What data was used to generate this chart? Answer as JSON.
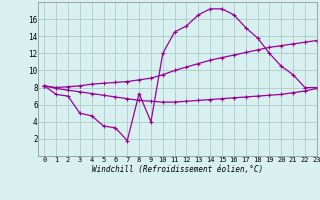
{
  "line1_x": [
    0,
    1,
    2,
    3,
    4,
    5,
    6,
    7,
    8,
    9,
    10,
    11,
    12,
    13,
    14,
    15,
    16,
    17,
    18,
    19,
    20,
    21,
    22,
    23
  ],
  "line1_y": [
    8.2,
    7.2,
    7.0,
    5.0,
    4.7,
    3.5,
    3.3,
    1.8,
    7.3,
    4.0,
    12.0,
    14.5,
    15.2,
    16.5,
    17.2,
    17.2,
    16.5,
    15.0,
    13.8,
    12.0,
    10.5,
    9.5,
    8.0,
    8.0
  ],
  "line2_x": [
    0,
    1,
    2,
    3,
    4,
    5,
    6,
    7,
    8,
    9,
    10,
    11,
    12,
    13,
    14,
    15,
    16,
    17,
    18,
    19,
    20,
    21,
    22,
    23
  ],
  "line2_y": [
    8.2,
    8.0,
    8.1,
    8.2,
    8.4,
    8.5,
    8.6,
    8.7,
    8.9,
    9.1,
    9.5,
    10.0,
    10.4,
    10.8,
    11.2,
    11.5,
    11.8,
    12.1,
    12.4,
    12.7,
    12.9,
    13.1,
    13.3,
    13.5
  ],
  "line3_x": [
    0,
    1,
    2,
    3,
    4,
    5,
    6,
    7,
    8,
    9,
    10,
    11,
    12,
    13,
    14,
    15,
    16,
    17,
    18,
    19,
    20,
    21,
    22,
    23
  ],
  "line3_y": [
    8.2,
    7.9,
    7.7,
    7.5,
    7.3,
    7.1,
    6.9,
    6.7,
    6.5,
    6.4,
    6.3,
    6.3,
    6.4,
    6.5,
    6.6,
    6.7,
    6.8,
    6.9,
    7.0,
    7.1,
    7.2,
    7.4,
    7.6,
    7.9
  ],
  "line_color": "#990099",
  "bg_color": "#d8f0f0",
  "grid_color": "#aacccc",
  "xlabel": "Windchill (Refroidissement éolien,°C)",
  "xlim": [
    -0.5,
    23
  ],
  "ylim": [
    0,
    18
  ],
  "yticks": [
    2,
    4,
    6,
    8,
    10,
    12,
    14,
    16
  ],
  "xticks": [
    0,
    1,
    2,
    3,
    4,
    5,
    6,
    7,
    8,
    9,
    10,
    11,
    12,
    13,
    14,
    15,
    16,
    17,
    18,
    19,
    20,
    21,
    22,
    23
  ],
  "marker": "+",
  "markersize": 3,
  "linewidth": 0.9,
  "tick_fontsize": 5.0,
  "xlabel_fontsize": 5.5
}
